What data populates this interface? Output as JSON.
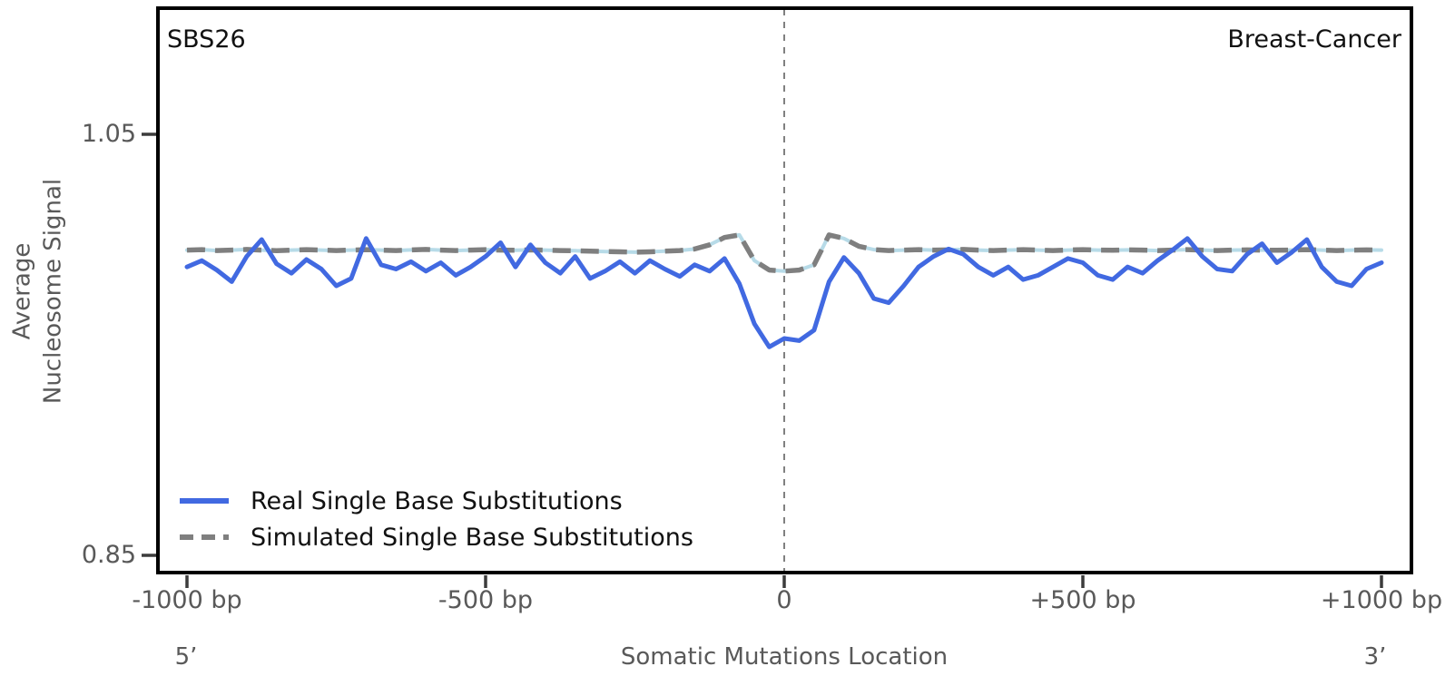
{
  "annotations": {
    "signature": "SBS26",
    "cancer_type": "Breast-Cancer"
  },
  "axes": {
    "y_label_line1": "Average",
    "y_label_line2": "Nucleosome Signal",
    "x_label": "Somatic Mutations Location",
    "five_prime": "5’",
    "three_prime": "3’",
    "y_tick_labels": [
      "1.05",
      "0.85"
    ],
    "x_tick_labels": [
      "-1000 bp",
      "-500 bp",
      "0",
      "+500 bp",
      "+1000 bp"
    ]
  },
  "legend": {
    "real_label": "Real Single Base Substitutions",
    "simulated_label": "Simulated Single Base Substitutions"
  },
  "colors": {
    "real_line": "#4169e1",
    "simulated_dash": "#7f7f7f",
    "simulated_underlay": "#b7dbe8",
    "frame": "#000000",
    "tick_mark": "#3c3c3c",
    "label_text": "#595959",
    "center_vline": "#808080"
  },
  "chart_data": {
    "type": "line",
    "title": "",
    "xlabel": "Somatic Mutations Location",
    "ylabel": "Average Nucleosome Signal",
    "xlim": [
      -1000,
      1000
    ],
    "x_tick_values": [
      -1000,
      -500,
      0,
      500,
      1000
    ],
    "y_tick_values": [
      0.85,
      1.05
    ],
    "grid": false,
    "legend_position": "lower left",
    "vline_x": 0,
    "x": [
      -1000,
      -975,
      -950,
      -925,
      -900,
      -875,
      -850,
      -825,
      -800,
      -775,
      -750,
      -725,
      -700,
      -675,
      -650,
      -625,
      -600,
      -575,
      -550,
      -525,
      -500,
      -475,
      -450,
      -425,
      -400,
      -375,
      -350,
      -325,
      -300,
      -275,
      -250,
      -225,
      -200,
      -175,
      -150,
      -125,
      -100,
      -75,
      -50,
      -25,
      0,
      25,
      50,
      75,
      100,
      125,
      150,
      175,
      200,
      225,
      250,
      275,
      300,
      325,
      350,
      375,
      400,
      425,
      450,
      475,
      500,
      525,
      550,
      575,
      600,
      625,
      650,
      675,
      700,
      725,
      750,
      775,
      800,
      825,
      850,
      875,
      900,
      925,
      950,
      975,
      1000
    ],
    "series": [
      {
        "name": "Real Single Base Substitutions",
        "style": "solid",
        "color": "#4169e1",
        "values": [
          0.987,
          0.99,
          0.9855,
          0.98,
          0.992,
          1.0,
          0.9885,
          0.984,
          0.9905,
          0.986,
          0.978,
          0.9815,
          1.0005,
          0.988,
          0.986,
          0.9895,
          0.985,
          0.989,
          0.983,
          0.987,
          0.992,
          0.9985,
          0.987,
          0.9975,
          0.989,
          0.984,
          0.992,
          0.9815,
          0.985,
          0.9895,
          0.984,
          0.99,
          0.986,
          0.9825,
          0.988,
          0.985,
          0.991,
          0.979,
          0.96,
          0.949,
          0.953,
          0.952,
          0.957,
          0.98,
          0.9915,
          0.984,
          0.972,
          0.97,
          0.978,
          0.987,
          0.992,
          0.9955,
          0.993,
          0.987,
          0.983,
          0.987,
          0.981,
          0.983,
          0.987,
          0.991,
          0.989,
          0.983,
          0.981,
          0.987,
          0.984,
          0.99,
          0.995,
          1.0005,
          0.992,
          0.986,
          0.985,
          0.993,
          0.998,
          0.989,
          0.994,
          1.0,
          0.987,
          0.98,
          0.978,
          0.986,
          0.989
        ]
      },
      {
        "name": "Simulated Single Base Substitutions",
        "style": "dashed",
        "color": "#7f7f7f",
        "underlay_color": "#b7dbe8",
        "values": [
          0.995,
          0.9952,
          0.9948,
          0.995,
          0.9953,
          0.995,
          0.9947,
          0.995,
          0.9952,
          0.995,
          0.9948,
          0.995,
          0.9952,
          0.995,
          0.9948,
          0.9951,
          0.9953,
          0.995,
          0.9948,
          0.995,
          0.9952,
          0.995,
          0.9949,
          0.9951,
          0.995,
          0.9948,
          0.9947,
          0.9945,
          0.9943,
          0.9942,
          0.994,
          0.9942,
          0.9945,
          0.9948,
          0.9955,
          0.9975,
          1.001,
          1.0022,
          0.99,
          0.9855,
          0.985,
          0.9855,
          0.988,
          1.0022,
          1.0005,
          0.9968,
          0.9952,
          0.9948,
          0.995,
          0.9952,
          0.995,
          0.9951,
          0.9953,
          0.995,
          0.9948,
          0.995,
          0.9952,
          0.995,
          0.9948,
          0.995,
          0.9952,
          0.995,
          0.9949,
          0.9951,
          0.995,
          0.9948,
          0.995,
          0.9952,
          0.995,
          0.9948,
          0.995,
          0.9951,
          0.995,
          0.9949,
          0.995,
          0.9952,
          0.995,
          0.9948,
          0.995,
          0.9951,
          0.995
        ]
      }
    ]
  }
}
